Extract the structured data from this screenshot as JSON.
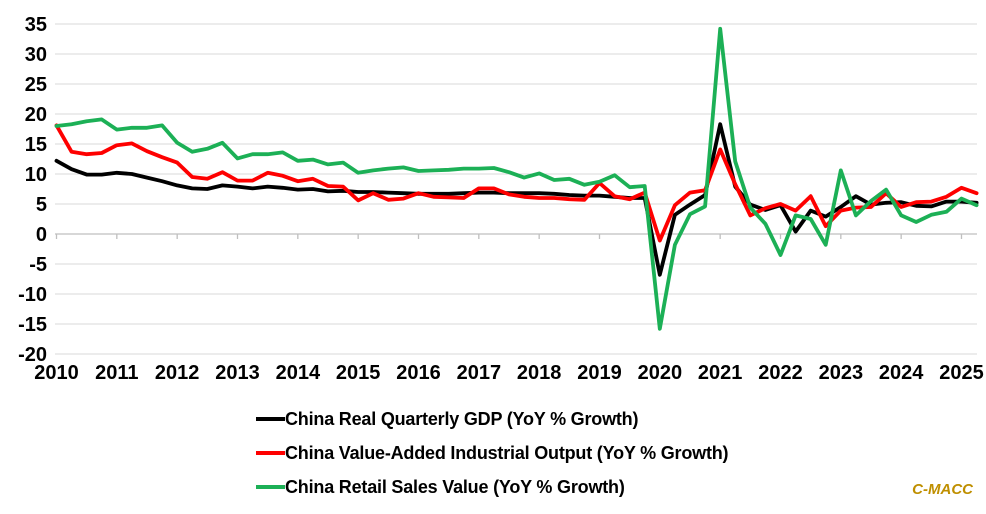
{
  "watermark": {
    "text": "C-MACC",
    "color": "#BF8F00"
  },
  "colors": {
    "background": "#FFFFFF",
    "gridline": "#D9D9D9",
    "axis_line": "#BFBFBF",
    "label_text": "#000000"
  },
  "chart_data": {
    "type": "line",
    "title": "",
    "xlabel": "",
    "ylabel": "",
    "grid": true,
    "legend_position": "bottom",
    "y_axis": {
      "min": -20,
      "max": 35,
      "ticks": [
        35,
        30,
        25,
        20,
        15,
        10,
        5,
        0,
        -5,
        -10,
        -15,
        -20
      ]
    },
    "x_axis": {
      "tick_labels": [
        "2010",
        "2011",
        "2012",
        "2013",
        "2014",
        "2015",
        "2016",
        "2017",
        "2018",
        "2019",
        "2020",
        "2021",
        "2022",
        "2023",
        "2024",
        "2025"
      ]
    },
    "x": [
      "2010Q1",
      "2010Q2",
      "2010Q3",
      "2010Q4",
      "2011Q1",
      "2011Q2",
      "2011Q3",
      "2011Q4",
      "2012Q1",
      "2012Q2",
      "2012Q3",
      "2012Q4",
      "2013Q1",
      "2013Q2",
      "2013Q3",
      "2013Q4",
      "2014Q1",
      "2014Q2",
      "2014Q3",
      "2014Q4",
      "2015Q1",
      "2015Q2",
      "2015Q3",
      "2015Q4",
      "2016Q1",
      "2016Q2",
      "2016Q3",
      "2016Q4",
      "2017Q1",
      "2017Q2",
      "2017Q3",
      "2017Q4",
      "2018Q1",
      "2018Q2",
      "2018Q3",
      "2018Q4",
      "2019Q1",
      "2019Q2",
      "2019Q3",
      "2019Q4",
      "2020Q1",
      "2020Q2",
      "2020Q3",
      "2020Q4",
      "2021Q1",
      "2021Q2",
      "2021Q3",
      "2021Q4",
      "2022Q1",
      "2022Q2",
      "2022Q3",
      "2022Q4",
      "2023Q1",
      "2023Q2",
      "2023Q3",
      "2023Q4",
      "2024Q1",
      "2024Q2",
      "2024Q3",
      "2024Q4",
      "2025Q1",
      "2025Q2"
    ],
    "series": [
      {
        "name": "China Real Quarterly GDP (YoY % Growth)",
        "color": "#000000",
        "values": [
          12.2,
          10.8,
          9.9,
          9.9,
          10.2,
          10.0,
          9.4,
          8.8,
          8.1,
          7.6,
          7.5,
          8.1,
          7.9,
          7.6,
          7.9,
          7.7,
          7.4,
          7.5,
          7.1,
          7.2,
          7.0,
          7.0,
          6.9,
          6.8,
          6.7,
          6.7,
          6.7,
          6.8,
          6.9,
          6.9,
          6.8,
          6.8,
          6.8,
          6.7,
          6.5,
          6.4,
          6.4,
          6.2,
          6.0,
          6.0,
          -6.8,
          3.2,
          4.9,
          6.5,
          18.3,
          7.9,
          4.9,
          4.0,
          4.8,
          0.4,
          3.9,
          2.9,
          4.5,
          6.3,
          4.9,
          5.2,
          5.3,
          4.7,
          4.6,
          5.4,
          5.4,
          5.2
        ]
      },
      {
        "name": "China Value-Added Industrial Output (YoY % Growth)",
        "color": "#FE0000",
        "values": [
          18.1,
          13.7,
          13.3,
          13.5,
          14.8,
          15.1,
          13.8,
          12.8,
          11.9,
          9.5,
          9.2,
          10.3,
          8.9,
          8.9,
          10.2,
          9.7,
          8.8,
          9.2,
          8.0,
          7.9,
          5.6,
          6.8,
          5.7,
          5.9,
          6.8,
          6.2,
          6.1,
          6.0,
          7.6,
          7.6,
          6.6,
          6.2,
          6.0,
          6.0,
          5.8,
          5.7,
          8.5,
          6.3,
          5.8,
          6.9,
          -1.1,
          4.8,
          6.9,
          7.3,
          14.1,
          8.3,
          3.1,
          4.3,
          5.0,
          3.9,
          6.3,
          1.3,
          3.9,
          4.4,
          4.5,
          6.8,
          4.5,
          5.3,
          5.4,
          6.2,
          7.7,
          6.8
        ]
      },
      {
        "name": "China Retail Sales Value (YoY % Growth)",
        "color": "#1CB056",
        "values": [
          18.0,
          18.3,
          18.8,
          19.1,
          17.4,
          17.7,
          17.7,
          18.1,
          15.2,
          13.7,
          14.2,
          15.2,
          12.6,
          13.3,
          13.3,
          13.6,
          12.2,
          12.4,
          11.6,
          11.9,
          10.2,
          10.6,
          10.9,
          11.1,
          10.5,
          10.6,
          10.7,
          10.9,
          10.9,
          11.0,
          10.3,
          9.4,
          10.1,
          9.0,
          9.2,
          8.2,
          8.7,
          9.8,
          7.8,
          8.0,
          -15.8,
          -1.8,
          3.3,
          4.6,
          34.2,
          12.1,
          4.4,
          1.7,
          -3.5,
          3.1,
          2.5,
          -1.8,
          10.6,
          3.1,
          5.5,
          7.4,
          3.1,
          2.0,
          3.2,
          3.7,
          5.9,
          4.8
        ]
      }
    ]
  }
}
